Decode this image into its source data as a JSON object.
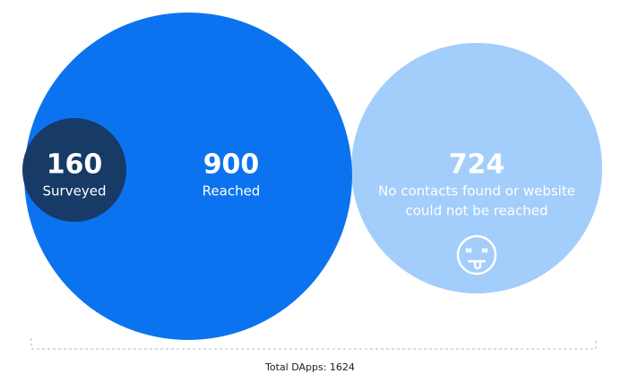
{
  "nodes": [
    {
      "value": 160,
      "label": [
        "Surveyed"
      ]
    },
    {
      "value": 900,
      "label": [
        "Reached"
      ]
    },
    {
      "value": 724,
      "label": [
        "No contacts found or website",
        "could not be reached"
      ]
    }
  ],
  "footer": "Total DApps: 1624"
}
